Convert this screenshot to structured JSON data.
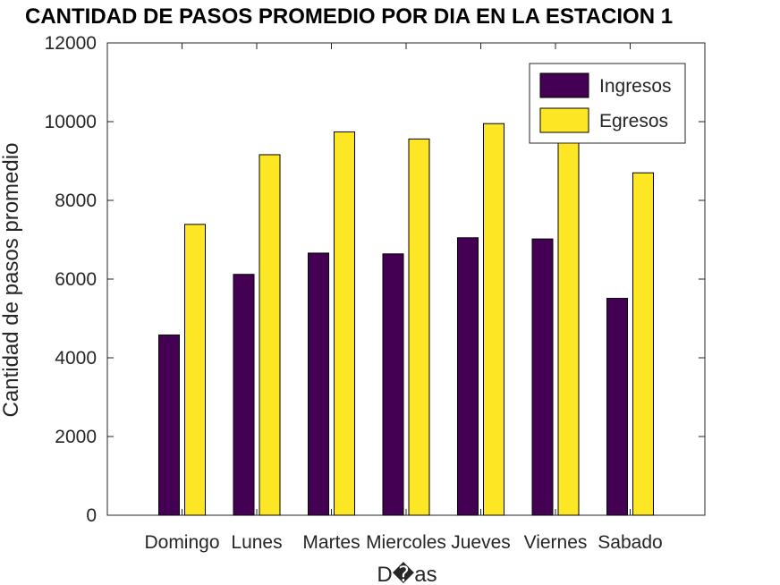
{
  "chart_data": {
    "type": "bar",
    "title": "CANTIDAD DE PASOS PROMEDIO POR DIA EN LA ESTACION 1",
    "xlabel": "D�as",
    "ylabel": "Cantidad de pasos promedio",
    "categories": [
      "Domingo",
      "Lunes",
      "Martes",
      "Miercoles",
      "Jueves",
      "Viernes",
      "Sabado"
    ],
    "series": [
      {
        "name": "Ingresos",
        "color": "#440154",
        "values": [
          4580,
          6120,
          6660,
          6640,
          7050,
          7020,
          5510
        ]
      },
      {
        "name": "Egresos",
        "color": "#fde725",
        "values": [
          7390,
          9160,
          9740,
          9560,
          9950,
          9880,
          8700
        ]
      }
    ],
    "ylim": [
      0,
      12000
    ],
    "yticks": [
      0,
      2000,
      4000,
      6000,
      8000,
      10000,
      12000
    ],
    "grid": false,
    "legend": "top-right"
  }
}
